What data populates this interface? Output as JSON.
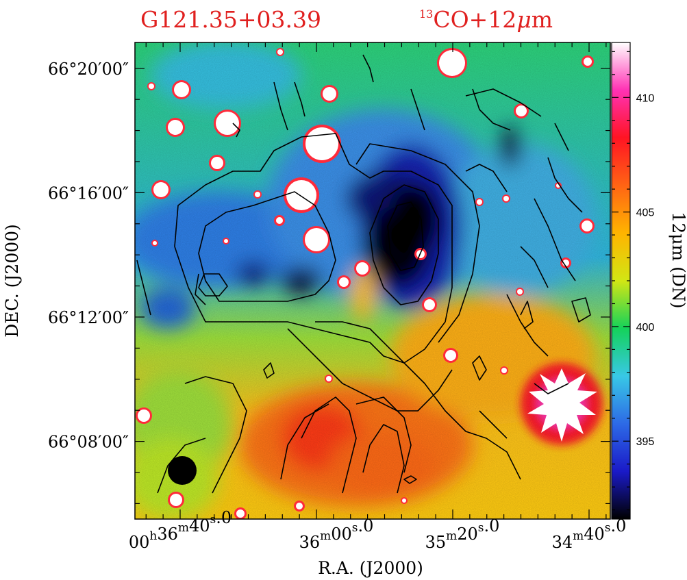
{
  "chart_data": {
    "type": "heatmap",
    "title_left": "G121.35+03.39",
    "title_right": {
      "sup": "13",
      "main": "CO+12",
      "mu": "μ",
      "tail": "m"
    },
    "xlabel": "R.A. (J2000)",
    "ylabel": "DEC. (J2000)",
    "colorbar_label": "12μm (DN)",
    "colorbar": {
      "range": [
        391.6,
        412.4
      ],
      "ticks": [
        {
          "value": 395,
          "label": "395"
        },
        {
          "value": 400,
          "label": "400"
        },
        {
          "value": 405,
          "label": "405"
        },
        {
          "value": 410,
          "label": "410"
        }
      ],
      "colormap": [
        "#000000",
        "#1a1ac8",
        "#2d6ae6",
        "#38c8e6",
        "#14d25a",
        "#d2e614",
        "#ffb400",
        "#ff6414",
        "#ff1423",
        "#ff32b4",
        "#ffffff"
      ]
    },
    "xticks": [
      {
        "h": "00",
        "m": "36",
        "s": "40",
        "frac": "0",
        "t": "00h36m40.0s"
      },
      {
        "h": "",
        "m": "36",
        "s": "00",
        "frac": "0",
        "t": "36m00.0s"
      },
      {
        "h": "",
        "m": "35",
        "s": "20",
        "frac": "0",
        "t": "35m20.0s"
      },
      {
        "h": "",
        "m": "34",
        "s": "40",
        "frac": "0",
        "t": "34m40.0s"
      }
    ],
    "yticks": [
      {
        "label": "66°20′00″",
        "dec_deg": 66.3333
      },
      {
        "label": "66°16′00″",
        "dec_deg": 66.2667
      },
      {
        "label": "66°12′00″",
        "dec_deg": 66.2
      },
      {
        "label": "66°08′00″",
        "dec_deg": 66.1333
      }
    ],
    "contour_overlay": "13CO integrated intensity (black lines)",
    "beam": "filled black circle, lower-left"
  }
}
